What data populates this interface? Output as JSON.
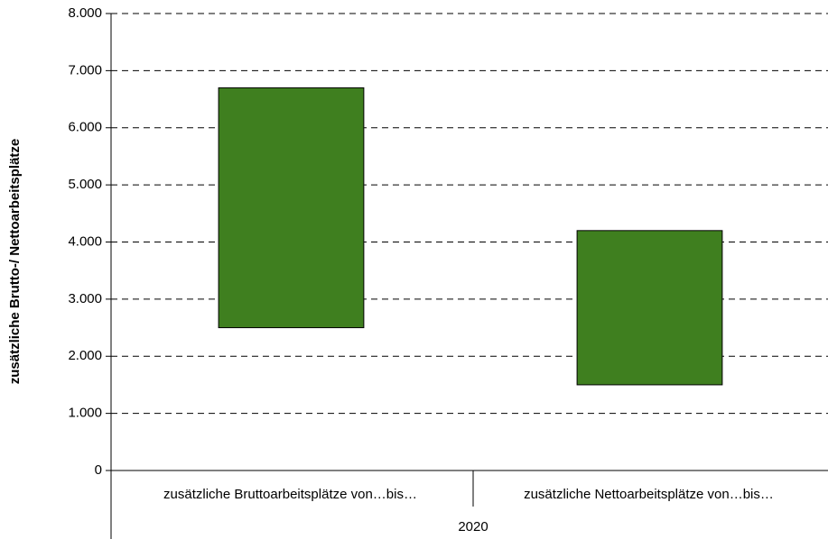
{
  "chart_data": {
    "type": "floating-bar",
    "y_label": "zusätzliche Brutto-/ Nettoarbeitsplätze",
    "categories": [
      "zusätzliche Bruttoarbeitsplätze von…bis…",
      "zusätzliche Nettoarbeitsplätze von…bis…"
    ],
    "group": "2020",
    "low": [
      2500,
      1500
    ],
    "high": [
      6700,
      4200
    ],
    "color": "#3f7f1f",
    "ylim": [
      0,
      8000
    ],
    "yticks": [
      0,
      {
        "value": 1000,
        "label": "1.000"
      },
      {
        "value": 2000,
        "label": "2.000"
      },
      {
        "value": 3000,
        "label": "3.000"
      },
      {
        "value": 4000,
        "label": "4.000"
      },
      {
        "value": 5000,
        "label": "5.000"
      },
      {
        "value": 6000,
        "label": "6.000"
      },
      {
        "value": 7000,
        "label": "7.000"
      },
      {
        "value": 8000,
        "label": "8.000"
      }
    ],
    "grid": true
  }
}
